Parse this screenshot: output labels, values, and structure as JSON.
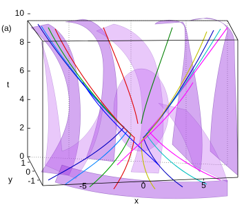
{
  "chart_data": {
    "type": "surface3d",
    "panel_label": "(a)",
    "xlabel": "x",
    "ylabel": "y",
    "zlabel": "t",
    "xticks": [
      -5,
      0,
      5
    ],
    "yticks": [
      1,
      0,
      -1
    ],
    "zlim": [
      0,
      10
    ],
    "zticks": [
      0,
      2,
      4,
      6,
      8,
      10
    ]
  }
}
